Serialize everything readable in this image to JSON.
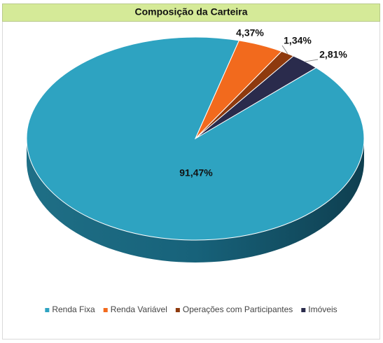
{
  "chart_data": {
    "type": "pie",
    "title": "Composição da Carteira",
    "categories": [
      "Renda Fixa",
      "Renda Variável",
      "Operações com Participantes",
      "Imóveis"
    ],
    "values": [
      91.47,
      4.37,
      1.34,
      2.81
    ],
    "value_labels": [
      "91,47%",
      "4,37%",
      "1,34%",
      "2,81%"
    ],
    "colors": [
      "#2ea3c1",
      "#f26a1d",
      "#8e3a0e",
      "#2a2b4c"
    ],
    "legend": "bottom"
  }
}
